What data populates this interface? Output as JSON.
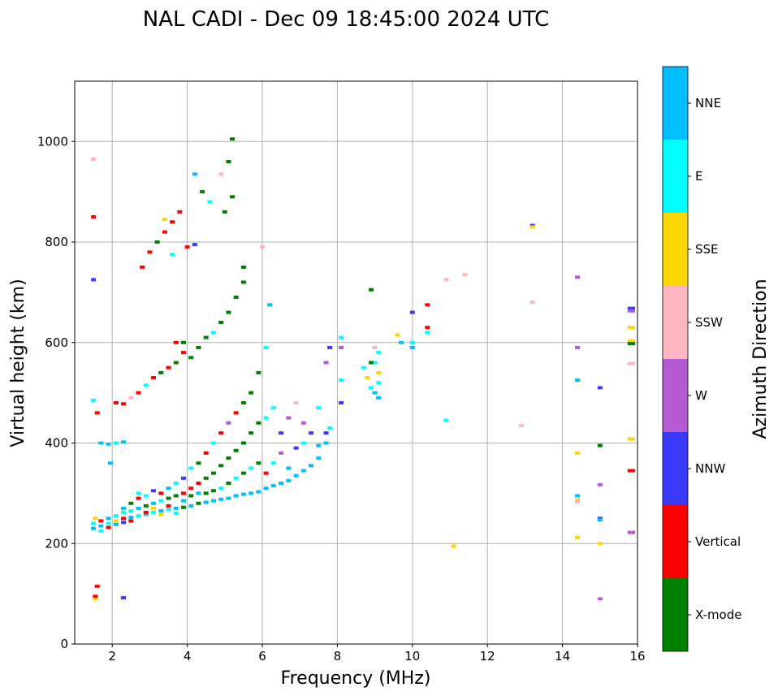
{
  "chart_data": {
    "type": "scatter",
    "title": "NAL CADI - Dec 09 18:45:00 2024 UTC",
    "xlabel": "Frequency (MHz)",
    "ylabel": "Virtual height (km)",
    "xlim": [
      1,
      16
    ],
    "ylim": [
      0,
      1120
    ],
    "xticks": [
      2,
      4,
      6,
      8,
      10,
      12,
      14,
      16
    ],
    "yticks": [
      0,
      200,
      400,
      600,
      800,
      1000
    ],
    "grid": true,
    "colorbar": {
      "label": "Azimuth Direction",
      "placement": "right",
      "categories": [
        "X-mode",
        "Vertical",
        "NNW",
        "W",
        "SSW",
        "SSE",
        "E",
        "NNE"
      ],
      "colors": [
        "#008000",
        "#ff0000",
        "#3a3aff",
        "#b45ad2",
        "#ffb6c1",
        "#ffd700",
        "#00ffff",
        "#00bfff"
      ]
    },
    "points_format": [
      "frequency_mhz",
      "virtual_height_km",
      "direction_index"
    ],
    "points": [
      [
        1.5,
        230,
        7
      ],
      [
        1.5,
        240,
        6
      ],
      [
        1.55,
        250,
        5
      ],
      [
        1.7,
        235,
        7
      ],
      [
        1.7,
        245,
        1
      ],
      [
        1.7,
        225,
        6
      ],
      [
        1.9,
        240,
        6
      ],
      [
        1.9,
        250,
        7
      ],
      [
        1.9,
        232,
        1
      ],
      [
        2.1,
        245,
        5
      ],
      [
        2.1,
        255,
        6
      ],
      [
        2.1,
        238,
        7
      ],
      [
        2.3,
        250,
        1
      ],
      [
        2.3,
        262,
        6
      ],
      [
        2.3,
        270,
        7
      ],
      [
        2.3,
        242,
        2
      ],
      [
        2.5,
        252,
        7
      ],
      [
        2.5,
        265,
        6
      ],
      [
        2.5,
        280,
        0
      ],
      [
        2.5,
        245,
        1
      ],
      [
        2.7,
        255,
        6
      ],
      [
        2.7,
        270,
        7
      ],
      [
        2.7,
        290,
        1
      ],
      [
        2.7,
        300,
        6
      ],
      [
        2.9,
        258,
        7
      ],
      [
        2.9,
        275,
        0
      ],
      [
        2.9,
        295,
        6
      ],
      [
        2.9,
        262,
        1
      ],
      [
        3.1,
        262,
        6
      ],
      [
        3.1,
        280,
        7
      ],
      [
        3.1,
        305,
        2
      ],
      [
        3.1,
        270,
        5
      ],
      [
        3.3,
        265,
        7
      ],
      [
        3.3,
        285,
        6
      ],
      [
        3.3,
        300,
        1
      ],
      [
        3.3,
        258,
        5
      ],
      [
        3.5,
        268,
        6
      ],
      [
        3.5,
        290,
        0
      ],
      [
        3.5,
        310,
        7
      ],
      [
        3.5,
        275,
        1
      ],
      [
        3.7,
        270,
        7
      ],
      [
        3.7,
        295,
        0
      ],
      [
        3.7,
        260,
        6
      ],
      [
        3.7,
        320,
        6
      ],
      [
        3.9,
        272,
        0
      ],
      [
        3.9,
        300,
        1
      ],
      [
        3.9,
        285,
        7
      ],
      [
        3.9,
        330,
        2
      ],
      [
        4.1,
        275,
        7
      ],
      [
        4.1,
        295,
        0
      ],
      [
        4.1,
        310,
        1
      ],
      [
        4.1,
        350,
        6
      ],
      [
        4.3,
        280,
        0
      ],
      [
        4.3,
        300,
        7
      ],
      [
        4.3,
        320,
        1
      ],
      [
        4.3,
        360,
        0
      ],
      [
        4.5,
        282,
        7
      ],
      [
        4.5,
        300,
        0
      ],
      [
        4.5,
        330,
        0
      ],
      [
        4.5,
        380,
        1
      ],
      [
        4.7,
        285,
        7
      ],
      [
        4.7,
        305,
        0
      ],
      [
        4.7,
        340,
        0
      ],
      [
        4.7,
        400,
        6
      ],
      [
        4.9,
        288,
        7
      ],
      [
        4.9,
        310,
        6
      ],
      [
        4.9,
        355,
        0
      ],
      [
        4.9,
        420,
        1
      ],
      [
        5.1,
        290,
        7
      ],
      [
        5.1,
        320,
        0
      ],
      [
        5.1,
        370,
        0
      ],
      [
        5.1,
        440,
        3
      ],
      [
        5.3,
        295,
        7
      ],
      [
        5.3,
        330,
        6
      ],
      [
        5.3,
        385,
        0
      ],
      [
        5.3,
        460,
        1
      ],
      [
        5.5,
        298,
        7
      ],
      [
        5.5,
        340,
        0
      ],
      [
        5.5,
        400,
        0
      ],
      [
        5.5,
        480,
        0
      ],
      [
        5.7,
        300,
        7
      ],
      [
        5.7,
        350,
        6
      ],
      [
        5.7,
        420,
        0
      ],
      [
        5.7,
        500,
        0
      ],
      [
        5.9,
        303,
        7
      ],
      [
        5.9,
        360,
        0
      ],
      [
        5.9,
        440,
        0
      ],
      [
        5.9,
        540,
        0
      ],
      [
        6.1,
        310,
        7
      ],
      [
        6.1,
        340,
        1
      ],
      [
        6.1,
        450,
        6
      ],
      [
        6.1,
        590,
        6
      ],
      [
        6.3,
        315,
        7
      ],
      [
        6.3,
        360,
        6
      ],
      [
        6.3,
        470,
        6
      ],
      [
        6.5,
        320,
        7
      ],
      [
        6.5,
        380,
        3
      ],
      [
        6.5,
        420,
        2
      ],
      [
        6.7,
        325,
        7
      ],
      [
        6.7,
        350,
        7
      ],
      [
        6.7,
        450,
        3
      ],
      [
        6.9,
        335,
        7
      ],
      [
        6.9,
        390,
        2
      ],
      [
        6.9,
        480,
        4
      ],
      [
        7.1,
        345,
        7
      ],
      [
        7.1,
        400,
        6
      ],
      [
        7.1,
        440,
        3
      ],
      [
        7.3,
        355,
        7
      ],
      [
        7.3,
        420,
        2
      ],
      [
        7.5,
        370,
        7
      ],
      [
        7.5,
        395,
        7
      ],
      [
        7.5,
        470,
        6
      ],
      [
        7.7,
        400,
        7
      ],
      [
        7.7,
        420,
        2
      ],
      [
        7.7,
        560,
        3
      ],
      [
        7.8,
        430,
        6
      ],
      [
        7.8,
        590,
        2
      ],
      [
        1.7,
        400,
        7
      ],
      [
        1.9,
        398,
        7
      ],
      [
        2.1,
        400,
        6
      ],
      [
        2.3,
        402,
        7
      ],
      [
        2.1,
        480,
        1
      ],
      [
        2.3,
        478,
        1
      ],
      [
        2.5,
        490,
        4
      ],
      [
        2.7,
        500,
        1
      ],
      [
        2.9,
        515,
        6
      ],
      [
        3.1,
        530,
        1
      ],
      [
        3.3,
        540,
        0
      ],
      [
        3.5,
        550,
        1
      ],
      [
        3.7,
        560,
        0
      ],
      [
        3.9,
        580,
        1
      ],
      [
        4.1,
        570,
        0
      ],
      [
        4.3,
        590,
        0
      ],
      [
        4.5,
        610,
        0
      ],
      [
        4.7,
        620,
        6
      ],
      [
        4.9,
        640,
        0
      ],
      [
        5.1,
        660,
        0
      ],
      [
        5.3,
        690,
        0
      ],
      [
        5.5,
        720,
        0
      ],
      [
        5.5,
        750,
        0
      ],
      [
        3.0,
        780,
        1
      ],
      [
        3.2,
        800,
        0
      ],
      [
        3.4,
        820,
        1
      ],
      [
        3.6,
        840,
        1
      ],
      [
        3.8,
        860,
        1
      ],
      [
        3.4,
        845,
        5
      ],
      [
        3.6,
        775,
        6
      ],
      [
        4.0,
        790,
        1
      ],
      [
        4.2,
        795,
        2
      ],
      [
        4.2,
        935,
        7
      ],
      [
        4.4,
        900,
        0
      ],
      [
        4.6,
        880,
        6
      ],
      [
        5.0,
        860,
        0
      ],
      [
        5.2,
        890,
        0
      ],
      [
        5.2,
        1005,
        0
      ],
      [
        5.1,
        960,
        0
      ],
      [
        4.9,
        935,
        4
      ],
      [
        3.7,
        600,
        1
      ],
      [
        3.9,
        600,
        0
      ],
      [
        1.5,
        965,
        4
      ],
      [
        1.5,
        850,
        1
      ],
      [
        1.5,
        725,
        2
      ],
      [
        1.5,
        485,
        6
      ],
      [
        1.6,
        460,
        1
      ],
      [
        1.6,
        115,
        1
      ],
      [
        1.55,
        90,
        5
      ],
      [
        1.55,
        95,
        1
      ],
      [
        2.3,
        92,
        2
      ],
      [
        1.95,
        360,
        7
      ],
      [
        2.8,
        750,
        1
      ],
      [
        6.2,
        675,
        7
      ],
      [
        6.0,
        790,
        4
      ],
      [
        8.1,
        610,
        6
      ],
      [
        8.1,
        525,
        6
      ],
      [
        8.1,
        480,
        2
      ],
      [
        8.1,
        590,
        3
      ],
      [
        8.7,
        550,
        6
      ],
      [
        8.8,
        530,
        5
      ],
      [
        8.9,
        510,
        6
      ],
      [
        9.0,
        560,
        6
      ],
      [
        9.0,
        500,
        7
      ],
      [
        9.1,
        580,
        6
      ],
      [
        9.1,
        540,
        5
      ],
      [
        9.1,
        520,
        6
      ],
      [
        9.1,
        490,
        7
      ],
      [
        8.9,
        705,
        0
      ],
      [
        8.9,
        560,
        0
      ],
      [
        9.0,
        590,
        4
      ],
      [
        9.6,
        615,
        5
      ],
      [
        9.7,
        600,
        7
      ],
      [
        10.0,
        660,
        2
      ],
      [
        10.0,
        600,
        6
      ],
      [
        10.0,
        590,
        7
      ],
      [
        10.4,
        675,
        1
      ],
      [
        10.4,
        630,
        1
      ],
      [
        10.4,
        620,
        6
      ],
      [
        10.9,
        725,
        4
      ],
      [
        10.9,
        445,
        6
      ],
      [
        11.1,
        195,
        5
      ],
      [
        11.4,
        735,
        4
      ],
      [
        12.9,
        435,
        4
      ],
      [
        13.2,
        833,
        2
      ],
      [
        13.2,
        830,
        5
      ],
      [
        13.2,
        680,
        4
      ],
      [
        14.4,
        730,
        3
      ],
      [
        14.4,
        590,
        3
      ],
      [
        14.4,
        525,
        7
      ],
      [
        14.4,
        380,
        5
      ],
      [
        14.4,
        295,
        7
      ],
      [
        14.4,
        287,
        5
      ],
      [
        14.4,
        283,
        4
      ],
      [
        14.4,
        212,
        5
      ],
      [
        15.0,
        510,
        2
      ],
      [
        15.0,
        395,
        0
      ],
      [
        15.0,
        317,
        3
      ],
      [
        15.0,
        250,
        2
      ],
      [
        15.0,
        247,
        7
      ],
      [
        15.0,
        200,
        5
      ],
      [
        15.0,
        90,
        3
      ],
      [
        15.8,
        668,
        2
      ],
      [
        15.8,
        663,
        3
      ],
      [
        15.8,
        630,
        5
      ],
      [
        15.8,
        603,
        5
      ],
      [
        15.8,
        598,
        0
      ],
      [
        15.8,
        558,
        4
      ],
      [
        15.8,
        408,
        5
      ],
      [
        15.8,
        345,
        1
      ],
      [
        15.8,
        222,
        3
      ]
    ]
  }
}
